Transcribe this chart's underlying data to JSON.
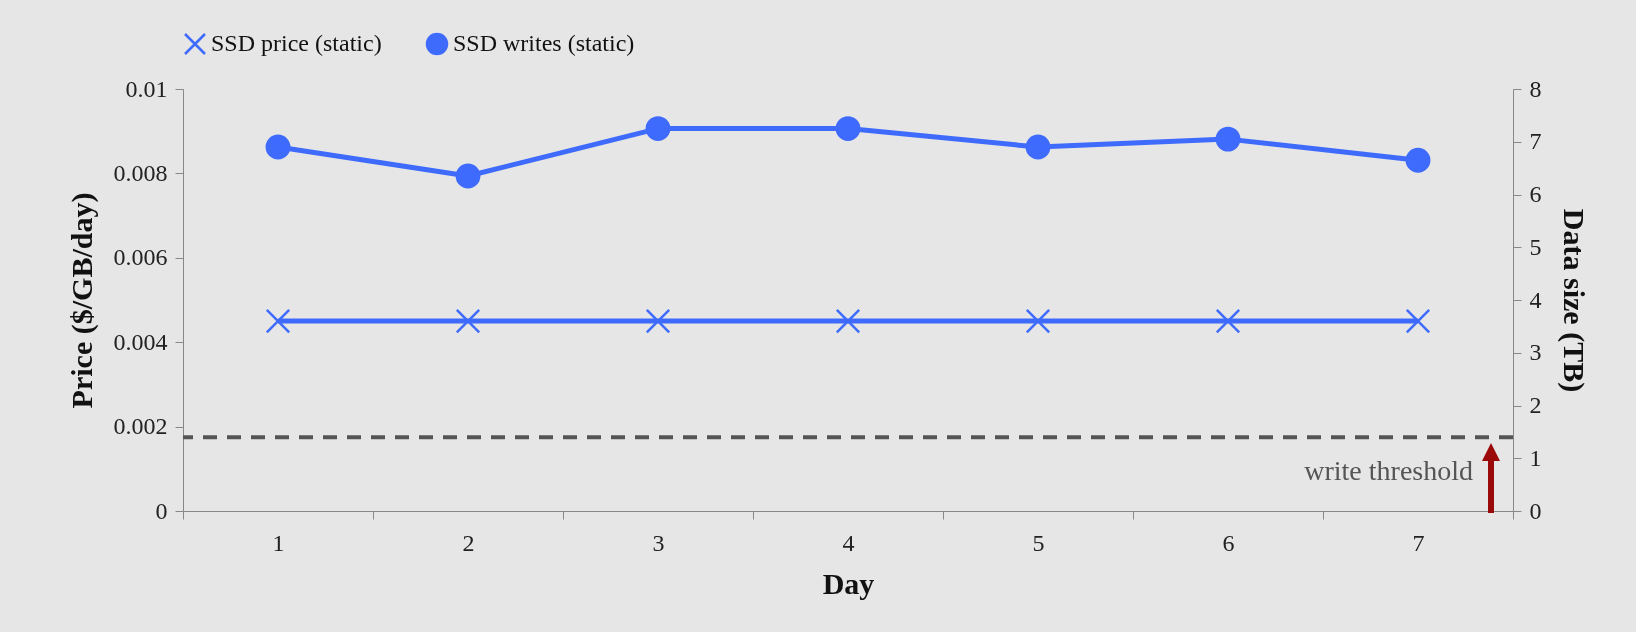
{
  "chart_data": {
    "type": "line",
    "categories": [
      "1",
      "2",
      "3",
      "4",
      "5",
      "6",
      "7"
    ],
    "xlabel": "Day",
    "ylabel": "Price ($/GB/day)",
    "y2label": "Data size (TB)",
    "series": [
      {
        "name": "SSD price (static)",
        "color": "#3f6bfd",
        "marker": "cross",
        "values": [
          0.0045,
          0.0045,
          0.0045,
          0.0045,
          0.0045,
          0.0045,
          0.0045
        ]
      },
      {
        "name": "SSD writes (static)",
        "color": "#3f6bfd",
        "marker": "circle",
        "axis": "y2",
        "values": [
          6.9,
          6.35,
          7.25,
          7.25,
          6.9,
          7.05,
          6.65
        ]
      }
    ],
    "ylim": [
      0,
      0.01
    ],
    "yticks": [
      0,
      0.002,
      0.004,
      0.006,
      0.008,
      0.01
    ],
    "y2lim": [
      0,
      8
    ],
    "y2ticks": [
      0,
      1,
      2,
      3,
      4,
      5,
      6,
      7,
      8
    ],
    "ref_lines": [
      {
        "axis": "y2",
        "value": 1.4,
        "label": "write threshold",
        "color": "#555555",
        "line_style": "dashed"
      }
    ],
    "legend": "top",
    "grid": false
  }
}
